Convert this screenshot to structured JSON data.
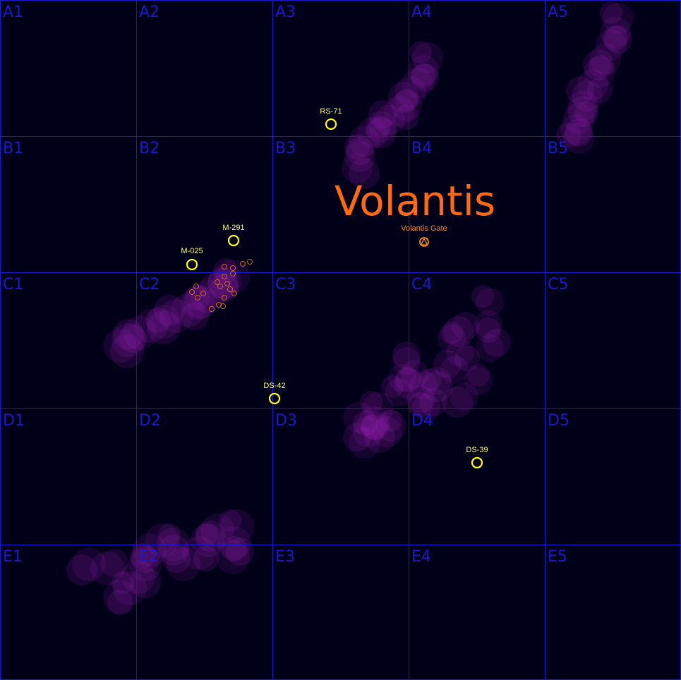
{
  "grid": {
    "rows": [
      "A",
      "B",
      "C",
      "D",
      "E"
    ],
    "cols": [
      "1",
      "2",
      "3",
      "4",
      "5"
    ],
    "line_color": "#1a1acc",
    "label_color": "#1a1acc"
  },
  "region": {
    "name": "Volantis",
    "color": "#ff6a10"
  },
  "gate": {
    "label": "Volantis Gate",
    "icon": "gate-icon",
    "color": "#ff8c1a"
  },
  "systems": [
    {
      "id": "rs71",
      "label": "RS-71"
    },
    {
      "id": "m291",
      "label": "M-291"
    },
    {
      "id": "m025",
      "label": "M-025"
    },
    {
      "id": "ds42",
      "label": "DS-42"
    },
    {
      "id": "ds39",
      "label": "DS-39"
    }
  ],
  "colors": {
    "background": "#000018",
    "nebula": "#b020d0",
    "system_marker": "#ffff00",
    "debris": "#c86a1a"
  }
}
